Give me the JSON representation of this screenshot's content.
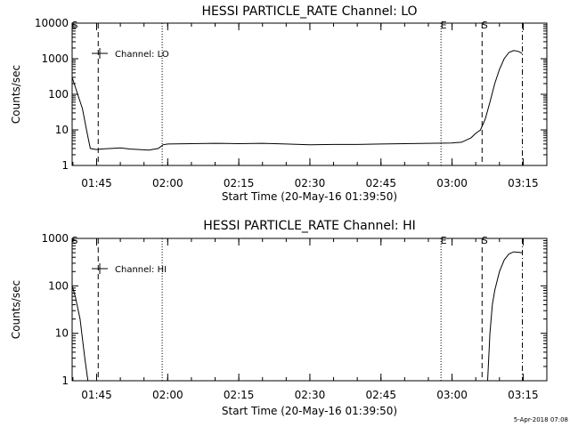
{
  "timestamp": "5-Apr-2018 07:08",
  "chart_data": [
    {
      "type": "line",
      "title": "HESSI PARTICLE_RATE Channel: LO",
      "xlabel": "Start Time (20-May-16 01:39:50)",
      "ylabel": "Counts/sec",
      "yscale": "log",
      "xlim": [
        "01:39:50",
        "03:20:00"
      ],
      "ylim": [
        1,
        10000
      ],
      "x_ticks": [
        "01:45",
        "02:00",
        "02:15",
        "02:30",
        "02:45",
        "03:00",
        "03:15"
      ],
      "y_ticks": [
        "1",
        "10",
        "100",
        "1000",
        "10000"
      ],
      "legend": {
        "label": "Channel: LO",
        "placement": "top-left"
      },
      "markers": [
        {
          "label": "S",
          "time": "01:39:50",
          "style": "dashdot"
        },
        {
          "label": "",
          "time": "01:45:20",
          "style": "dashed"
        },
        {
          "label": "",
          "time": "01:58:50",
          "style": "dotted"
        },
        {
          "label": "E",
          "time": "02:57:40",
          "style": "dotted"
        },
        {
          "label": "S",
          "time": "03:06:20",
          "style": "dashed"
        },
        {
          "label": "",
          "time": "03:14:50",
          "style": "dashdot"
        }
      ],
      "series": [
        {
          "values": [
            [
              "01:39:50",
              300
            ],
            [
              "01:41:00",
              100
            ],
            [
              "01:42:00",
              40
            ],
            [
              "01:43:00",
              8
            ],
            [
              "01:43:40",
              3
            ],
            [
              "01:45:00",
              2.8
            ],
            [
              "01:46:00",
              2.9
            ],
            [
              "01:48:00",
              3.0
            ],
            [
              "01:50:00",
              3.1
            ],
            [
              "01:52:00",
              2.9
            ],
            [
              "01:54:00",
              2.8
            ],
            [
              "01:56:00",
              2.7
            ],
            [
              "01:58:00",
              3.0
            ],
            [
              "01:59:00",
              3.8
            ],
            [
              "02:00:00",
              4.0
            ],
            [
              "02:05:00",
              4.1
            ],
            [
              "02:10:00",
              4.2
            ],
            [
              "02:15:00",
              4.1
            ],
            [
              "02:20:00",
              4.2
            ],
            [
              "02:25:00",
              4.0
            ],
            [
              "02:30:00",
              3.8
            ],
            [
              "02:35:00",
              3.9
            ],
            [
              "02:40:00",
              3.9
            ],
            [
              "02:45:00",
              4.0
            ],
            [
              "02:50:00",
              4.1
            ],
            [
              "02:55:00",
              4.2
            ],
            [
              "03:00:00",
              4.3
            ],
            [
              "03:02:00",
              4.5
            ],
            [
              "03:04:00",
              6
            ],
            [
              "03:05:00",
              8
            ],
            [
              "03:06:00",
              10
            ],
            [
              "03:07:00",
              20
            ],
            [
              "03:08:00",
              60
            ],
            [
              "03:09:00",
              200
            ],
            [
              "03:10:00",
              500
            ],
            [
              "03:11:00",
              1000
            ],
            [
              "03:12:00",
              1500
            ],
            [
              "03:13:00",
              1700
            ],
            [
              "03:14:00",
              1600
            ],
            [
              "03:14:50",
              1400
            ]
          ]
        }
      ]
    },
    {
      "type": "line",
      "title": "HESSI PARTICLE_RATE Channel: HI",
      "xlabel": "Start Time (20-May-16 01:39:50)",
      "ylabel": "Counts/sec",
      "yscale": "log",
      "xlim": [
        "01:39:50",
        "03:20:00"
      ],
      "ylim": [
        1,
        1000
      ],
      "x_ticks": [
        "01:45",
        "02:00",
        "02:15",
        "02:30",
        "02:45",
        "03:00",
        "03:15"
      ],
      "y_ticks": [
        "1",
        "10",
        "100",
        "1000"
      ],
      "legend": {
        "label": "Channel: HI",
        "placement": "top-left"
      },
      "markers": [
        {
          "label": "S",
          "time": "01:39:50",
          "style": "dashdot"
        },
        {
          "label": "",
          "time": "01:45:20",
          "style": "dashed"
        },
        {
          "label": "",
          "time": "01:58:50",
          "style": "dotted"
        },
        {
          "label": "E",
          "time": "02:57:40",
          "style": "dotted"
        },
        {
          "label": "S",
          "time": "03:06:20",
          "style": "dashed"
        },
        {
          "label": "",
          "time": "03:14:50",
          "style": "dashdot"
        }
      ],
      "series": [
        {
          "values": [
            [
              "01:39:50",
              100
            ],
            [
              "01:40:30",
              60
            ],
            [
              "01:41:30",
              20
            ],
            [
              "01:42:30",
              3
            ],
            [
              "01:43:10",
              1
            ],
            null,
            [
              "03:07:30",
              1
            ],
            [
              "03:08:00",
              10
            ],
            [
              "03:08:30",
              40
            ],
            [
              "03:09:00",
              80
            ],
            [
              "03:10:00",
              200
            ],
            [
              "03:11:00",
              350
            ],
            [
              "03:12:00",
              470
            ],
            [
              "03:13:00",
              520
            ],
            [
              "03:14:00",
              510
            ],
            [
              "03:14:50",
              500
            ]
          ]
        }
      ]
    }
  ]
}
